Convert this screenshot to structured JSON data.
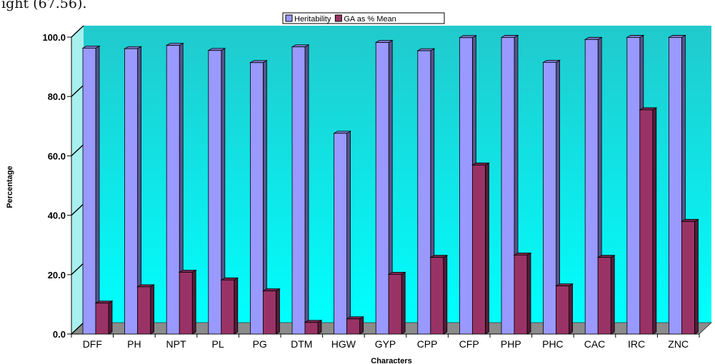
{
  "page": {
    "top_text": "ight (67.56)."
  },
  "chart_data": {
    "type": "bar",
    "title": "",
    "xlabel": "Characters",
    "ylabel": "Percentage",
    "ylim": [
      0,
      100
    ],
    "yticks": [
      "0.0",
      "20.0",
      "40.0",
      "60.0",
      "80.0",
      "100.0"
    ],
    "grid": false,
    "legend_position": "top-center",
    "categories": [
      "DFF",
      "PH",
      "NPT",
      "PL",
      "PG",
      "DTM",
      "HGW",
      "GYP",
      "CPP",
      "CFP",
      "PHP",
      "PHC",
      "CAC",
      "IRC",
      "ZNC"
    ],
    "series": [
      {
        "name": "Heritability",
        "color": "#9999ff",
        "values": [
          96.3,
          96.1,
          97.2,
          95.5,
          91.4,
          96.7,
          67.6,
          98.2,
          95.4,
          99.8,
          99.9,
          91.5,
          99.2,
          99.9,
          99.9
        ]
      },
      {
        "name": "GA as % Mean",
        "color": "#993366",
        "values": [
          10.4,
          15.9,
          20.8,
          18.2,
          14.5,
          3.9,
          5.1,
          20.1,
          25.8,
          56.9,
          26.6,
          16.2,
          25.8,
          75.5,
          37.9
        ]
      }
    ],
    "colors": {
      "background_top": "#21c9cc",
      "background_bottom": "#00ffff",
      "side_wall": "#a7f0ee",
      "floor": "#8c8c8c",
      "bar_outline": "#000000"
    }
  }
}
